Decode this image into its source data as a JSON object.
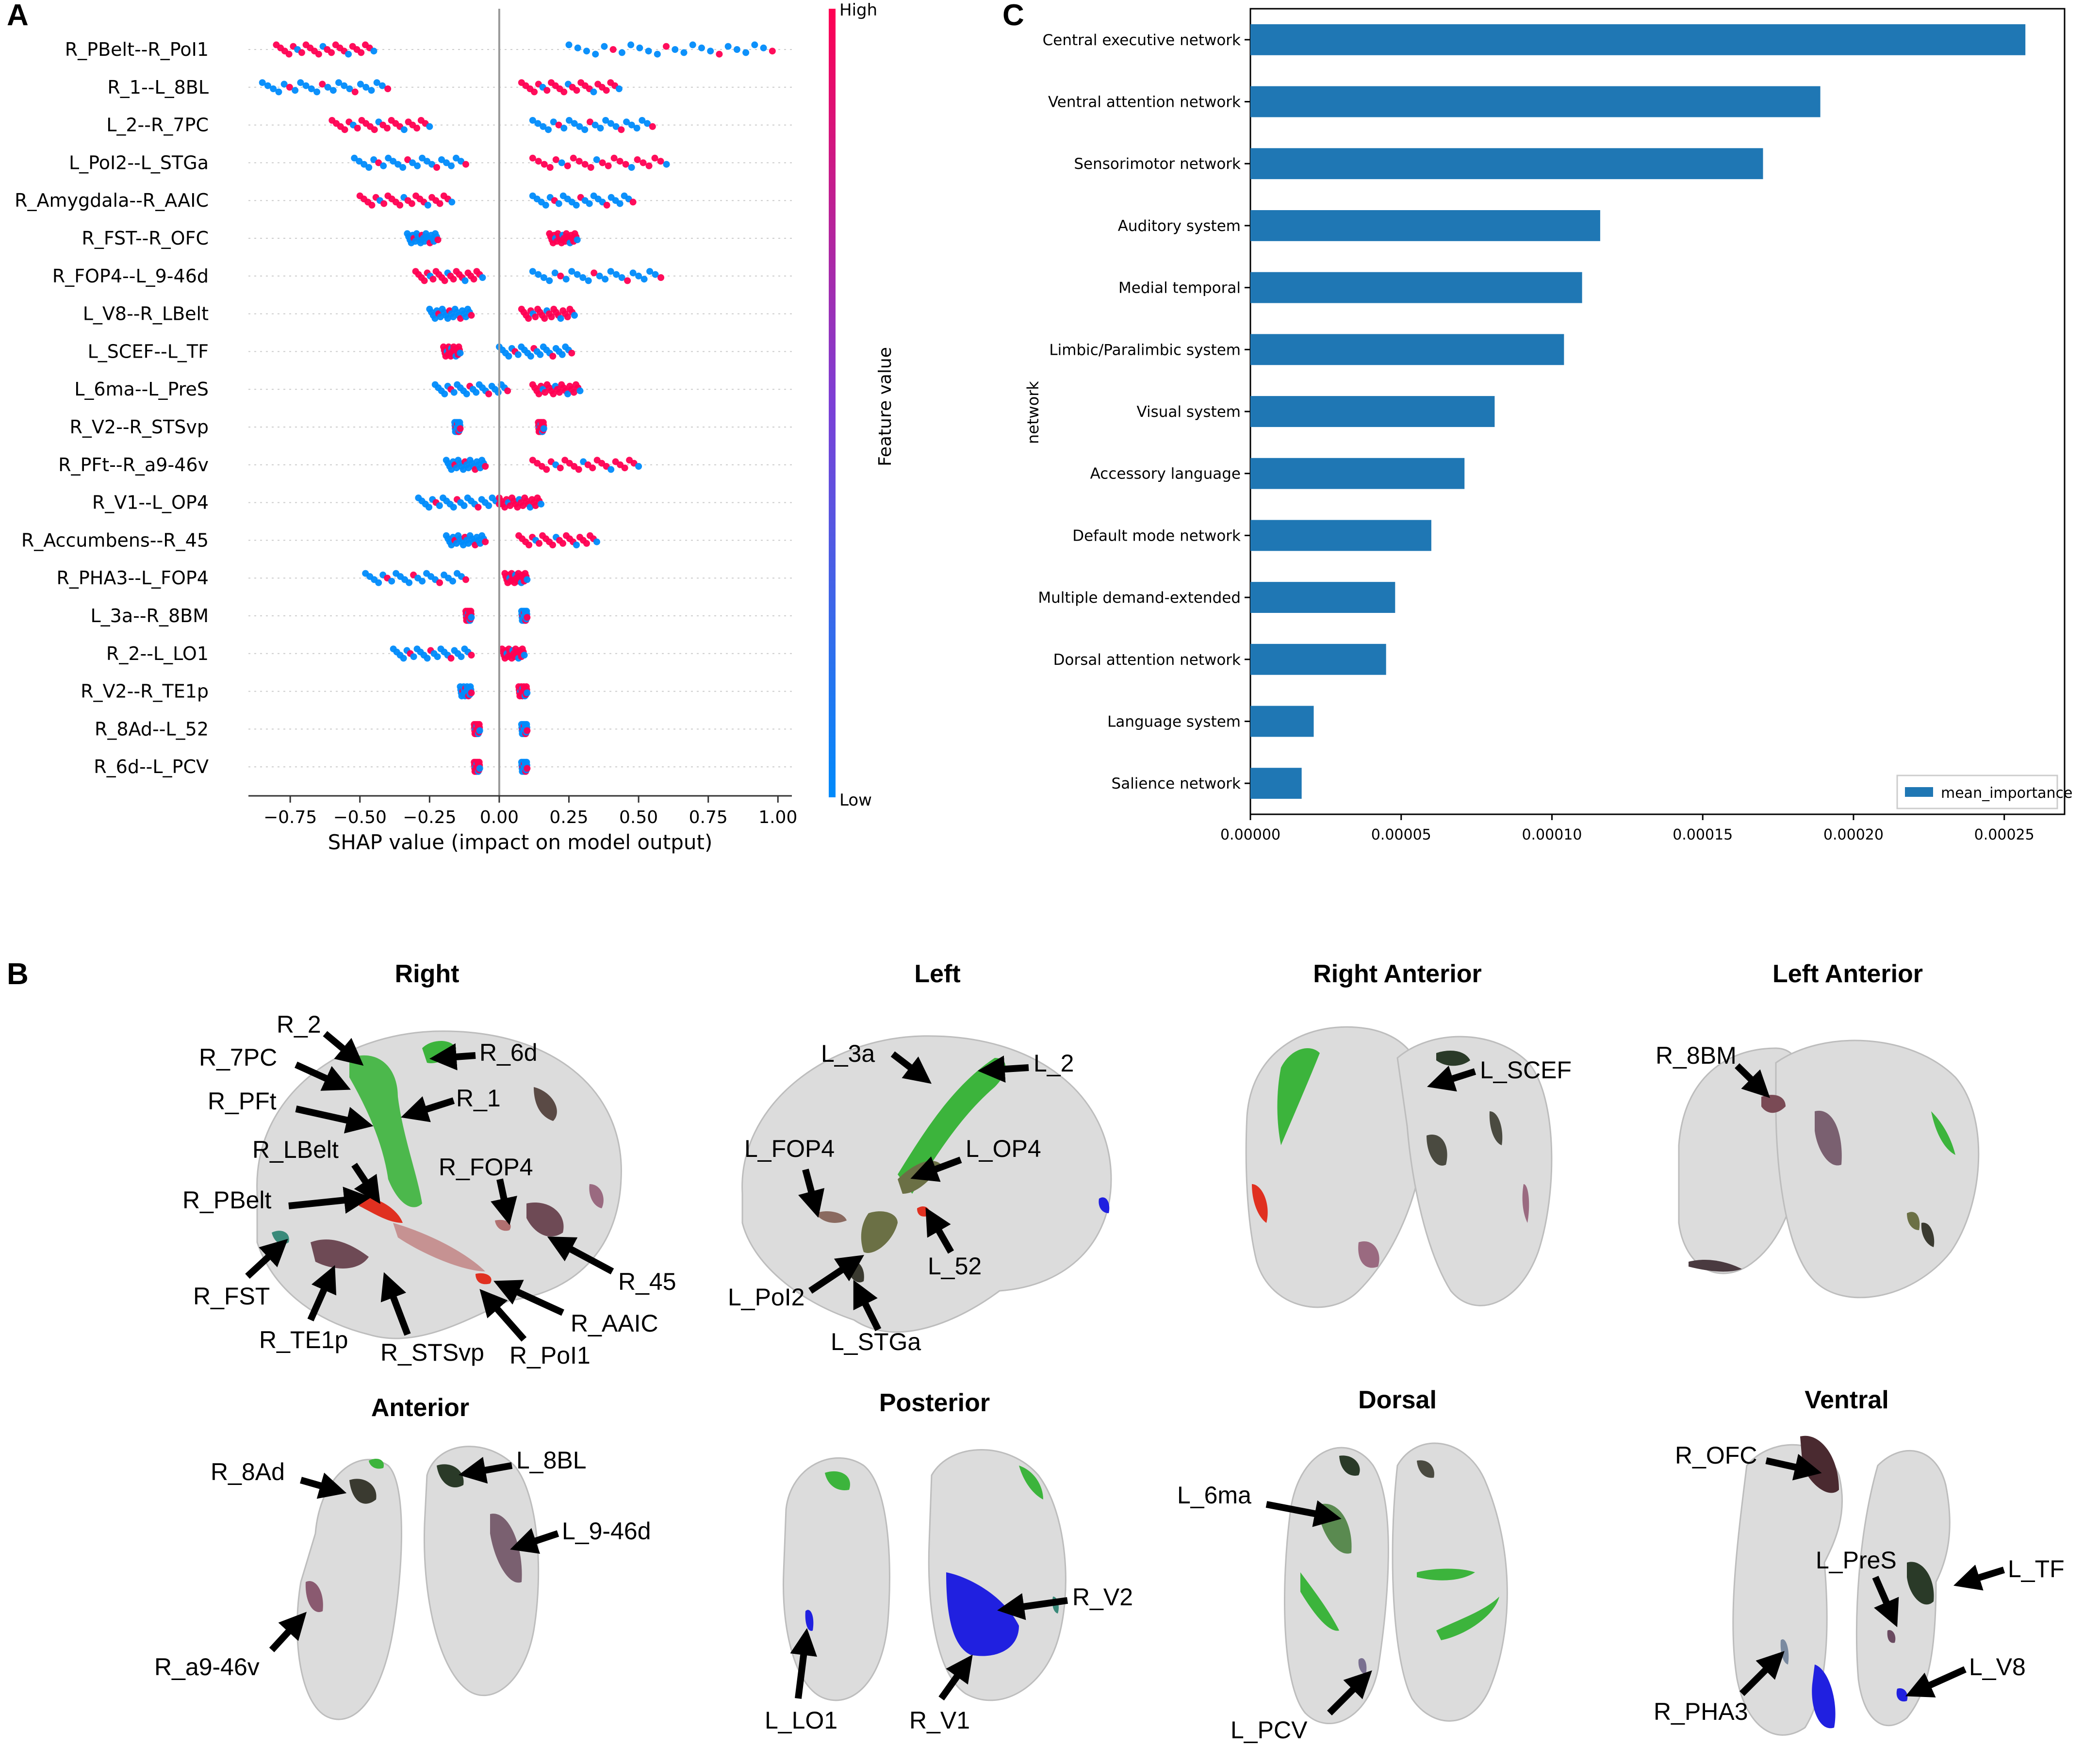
{
  "panels": {
    "a": "A",
    "b": "B",
    "c": "C"
  },
  "colors": {
    "high": "#ff0052",
    "low": "#008bfb",
    "bar": "#1f77b4",
    "green": "#3cb43c",
    "red": "#e03020",
    "maroon": "#6e4a55",
    "blue": "#2020e0",
    "teal": "#3a8a7a",
    "olive": "#6b7045"
  },
  "chart_data": [
    {
      "type": "scatter",
      "subtype": "shap-beeswarm",
      "xlabel": "SHAP value (impact on model output)",
      "xlim": [
        -0.9,
        1.05
      ],
      "xticks": [
        -0.75,
        -0.5,
        -0.25,
        0.0,
        0.25,
        0.5,
        0.75,
        1.0
      ],
      "xtick_labels": [
        "−0.75",
        "−0.50",
        "−0.25",
        "0.00",
        "0.25",
        "0.50",
        "0.75",
        "1.00"
      ],
      "colorbar": {
        "label": "Feature value",
        "high": "High",
        "low": "Low"
      },
      "features": [
        {
          "name": "R_PBelt--R_PoI1",
          "neg": [
            -0.8,
            -0.45
          ],
          "pos": [
            0.25,
            0.98
          ],
          "neg_color": "high",
          "pos_color": "low"
        },
        {
          "name": "R_1--L_8BL",
          "neg": [
            -0.85,
            -0.4
          ],
          "pos": [
            0.08,
            0.43
          ],
          "neg_color": "low",
          "pos_color": "high"
        },
        {
          "name": "L_2--R_7PC",
          "neg": [
            -0.6,
            -0.25
          ],
          "pos": [
            0.12,
            0.55
          ],
          "neg_color": "high",
          "pos_color": "low"
        },
        {
          "name": "L_PoI2--L_STGa",
          "neg": [
            -0.52,
            -0.12
          ],
          "pos": [
            0.12,
            0.6
          ],
          "neg_color": "low",
          "pos_color": "high"
        },
        {
          "name": "R_Amygdala--R_AAIC",
          "neg": [
            -0.5,
            -0.17
          ],
          "pos": [
            0.12,
            0.48
          ],
          "neg_color": "high",
          "pos_color": "low"
        },
        {
          "name": "R_FST--R_OFC",
          "neg": [
            -0.33,
            -0.22
          ],
          "pos": [
            0.18,
            0.28
          ],
          "neg_color": "low",
          "pos_color": "high"
        },
        {
          "name": "R_FOP4--L_9-46d",
          "neg": [
            -0.3,
            -0.06
          ],
          "pos": [
            0.12,
            0.58
          ],
          "neg_color": "high",
          "pos_color": "low"
        },
        {
          "name": "L_V8--R_LBelt",
          "neg": [
            -0.25,
            -0.1
          ],
          "pos": [
            0.08,
            0.27
          ],
          "neg_color": "low",
          "pos_color": "high"
        },
        {
          "name": "L_SCEF--L_TF",
          "neg": [
            -0.2,
            -0.14
          ],
          "pos": [
            0.0,
            0.26
          ],
          "neg_color": "high",
          "pos_color": "low"
        },
        {
          "name": "L_6ma--L_PreS",
          "neg": [
            -0.23,
            0.03
          ],
          "pos": [
            0.12,
            0.29
          ],
          "neg_color": "low",
          "pos_color": "high"
        },
        {
          "name": "R_V2--R_STSvp",
          "neg": [
            -0.16,
            -0.14
          ],
          "pos": [
            0.14,
            0.16
          ],
          "neg_color": "low",
          "pos_color": "high"
        },
        {
          "name": "R_PFt--R_a9-46v",
          "neg": [
            -0.19,
            -0.05
          ],
          "pos": [
            0.12,
            0.5
          ],
          "neg_color": "low",
          "pos_color": "high"
        },
        {
          "name": "R_V1--L_OP4",
          "neg": [
            -0.29,
            0.0
          ],
          "pos": [
            0.0,
            0.15
          ],
          "neg_color": "low",
          "pos_color": "high"
        },
        {
          "name": "R_Accumbens--R_45",
          "neg": [
            -0.19,
            -0.05
          ],
          "pos": [
            0.07,
            0.35
          ],
          "neg_color": "low",
          "pos_color": "high"
        },
        {
          "name": "R_PHA3--L_FOP4",
          "neg": [
            -0.48,
            -0.12
          ],
          "pos": [
            0.02,
            0.1
          ],
          "neg_color": "low",
          "pos_color": "high"
        },
        {
          "name": "L_3a--R_8BM",
          "neg": [
            -0.12,
            -0.1
          ],
          "pos": [
            0.08,
            0.1
          ],
          "neg_color": "high",
          "pos_color": "low"
        },
        {
          "name": "R_2--L_LO1",
          "neg": [
            -0.38,
            -0.1
          ],
          "pos": [
            0.01,
            0.09
          ],
          "neg_color": "low",
          "pos_color": "high"
        },
        {
          "name": "R_V2--R_TE1p",
          "neg": [
            -0.14,
            -0.1
          ],
          "pos": [
            0.07,
            0.1
          ],
          "neg_color": "low",
          "pos_color": "high"
        },
        {
          "name": "R_8Ad--L_52",
          "neg": [
            -0.09,
            -0.07
          ],
          "pos": [
            0.08,
            0.1
          ],
          "neg_color": "high",
          "pos_color": "low"
        },
        {
          "name": "R_6d--L_PCV",
          "neg": [
            -0.09,
            -0.07
          ],
          "pos": [
            0.08,
            0.1
          ],
          "neg_color": "high",
          "pos_color": "low"
        }
      ]
    },
    {
      "type": "bar",
      "orientation": "horizontal",
      "ylabel": "network",
      "xlim": [
        0,
        0.00027
      ],
      "xticks": [
        0,
        5e-05,
        0.0001,
        0.00015,
        0.0002,
        0.00025
      ],
      "xtick_labels": [
        "0.00000",
        "0.00005",
        "0.00010",
        "0.00015",
        "0.00020",
        "0.00025"
      ],
      "legend": "mean_importance",
      "legend_position": "bottom-right",
      "categories": [
        "Central executive network",
        "Ventral attention network",
        "Sensorimotor network",
        "Auditory system",
        "Medial temporal",
        "Limbic/Paralimbic system",
        "Visual system",
        "Accessory language",
        "Default mode network",
        "Multiple demand-extended",
        "Dorsal attention network",
        "Language system",
        "Salience network"
      ],
      "values": [
        0.000257,
        0.000189,
        0.00017,
        0.000116,
        0.00011,
        0.000104,
        8.1e-05,
        7.1e-05,
        6e-05,
        4.8e-05,
        4.5e-05,
        2.1e-05,
        1.7e-05
      ]
    }
  ],
  "brain": {
    "views": [
      "Right",
      "Left",
      "Right Anterior",
      "Left Anterior",
      "Anterior",
      "Posterior",
      "Dorsal",
      "Ventral"
    ],
    "labels": {
      "right": [
        "R_2",
        "R_7PC",
        "R_6d",
        "R_PFt",
        "R_1",
        "R_LBelt",
        "R_FOP4",
        "R_PBelt",
        "R_45",
        "R_FST",
        "R_AAIC",
        "R_TE1p",
        "R_STSvp",
        "R_PoI1"
      ],
      "left": [
        "L_3a",
        "L_2",
        "L_FOP4",
        "L_OP4",
        "L_52",
        "L_PoI2",
        "L_STGa"
      ],
      "right_anterior": [
        "L_SCEF"
      ],
      "left_anterior": [
        "R_8BM"
      ],
      "anterior": [
        "R_8Ad",
        "L_8BL",
        "L_9-46d",
        "R_a9-46v"
      ],
      "posterior": [
        "R_V2",
        "L_LO1",
        "R_V1"
      ],
      "dorsal": [
        "L_6ma",
        "L_PCV"
      ],
      "ventral": [
        "R_OFC",
        "L_PreS",
        "L_TF",
        "R_PHA3",
        "L_V8"
      ]
    }
  }
}
